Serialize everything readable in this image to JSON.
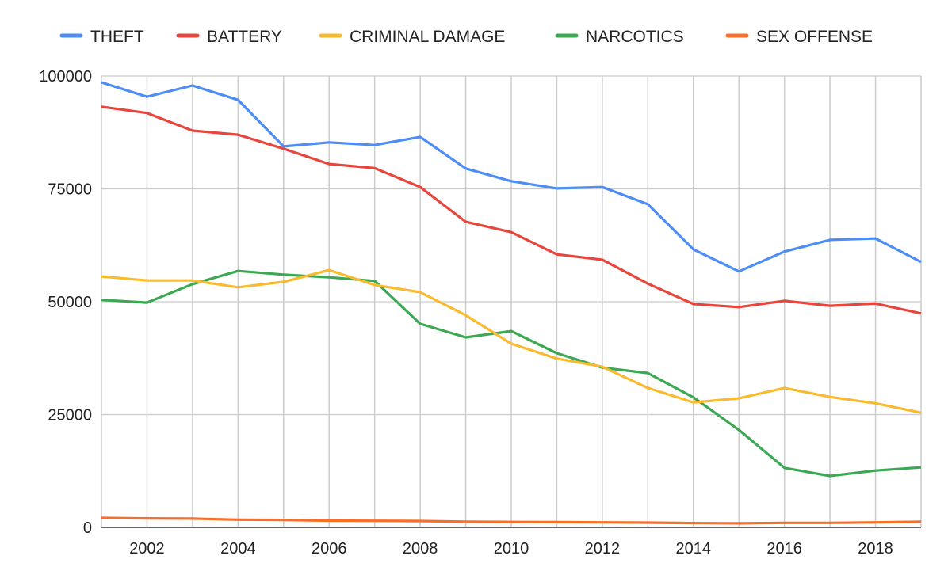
{
  "chart_data": {
    "type": "line",
    "title": "",
    "xlabel": "",
    "ylabel": "",
    "x": [
      2001,
      2002,
      2003,
      2004,
      2005,
      2006,
      2007,
      2008,
      2009,
      2010,
      2011,
      2012,
      2013,
      2014,
      2015,
      2016,
      2017,
      2018,
      2019
    ],
    "x_tick_labels": [
      "2002",
      "2004",
      "2006",
      "2008",
      "2010",
      "2012",
      "2014",
      "2016",
      "2018"
    ],
    "x_ticks": [
      2002,
      2004,
      2006,
      2008,
      2010,
      2012,
      2014,
      2016,
      2018
    ],
    "y_ticks": [
      0,
      25000,
      50000,
      75000,
      100000
    ],
    "y_tick_labels": [
      "0",
      "25000",
      "50000",
      "75000",
      "100000"
    ],
    "xlim": [
      2001,
      2019
    ],
    "ylim": [
      0,
      100000
    ],
    "grid": true,
    "legend_position": "top",
    "series": [
      {
        "name": "THEFT",
        "color": "#4e8df5",
        "values": [
          98600,
          95400,
          97900,
          94700,
          84400,
          85300,
          84700,
          86500,
          79500,
          76700,
          75100,
          75400,
          71600,
          61600,
          56700,
          61100,
          63700,
          64000,
          58800
        ]
      },
      {
        "name": "BATTERY",
        "color": "#e8453c",
        "values": [
          93200,
          91800,
          87900,
          87000,
          83900,
          80500,
          79600,
          75400,
          67700,
          65400,
          60500,
          59300,
          54000,
          49500,
          48800,
          50200,
          49100,
          49600,
          47400
        ]
      },
      {
        "name": "CRIMINAL DAMAGE",
        "color": "#f9bb2d",
        "values": [
          55600,
          54700,
          54700,
          53200,
          54400,
          57000,
          53700,
          52100,
          47000,
          40700,
          37400,
          35600,
          30900,
          27700,
          28600,
          30900,
          28900,
          27500,
          25400
        ]
      },
      {
        "name": "NARCOTICS",
        "color": "#3da853",
        "values": [
          50400,
          49800,
          53900,
          56800,
          56000,
          55400,
          54600,
          45100,
          42100,
          43500,
          38600,
          35400,
          34200,
          28800,
          21600,
          13200,
          11400,
          12600,
          13300
        ]
      },
      {
        "name": "SEX OFFENSE",
        "color": "#fa6e28",
        "values": [
          2100,
          2000,
          1950,
          1700,
          1650,
          1500,
          1450,
          1400,
          1250,
          1200,
          1150,
          1100,
          1050,
          950,
          900,
          1000,
          1000,
          1100,
          1250
        ]
      }
    ]
  }
}
